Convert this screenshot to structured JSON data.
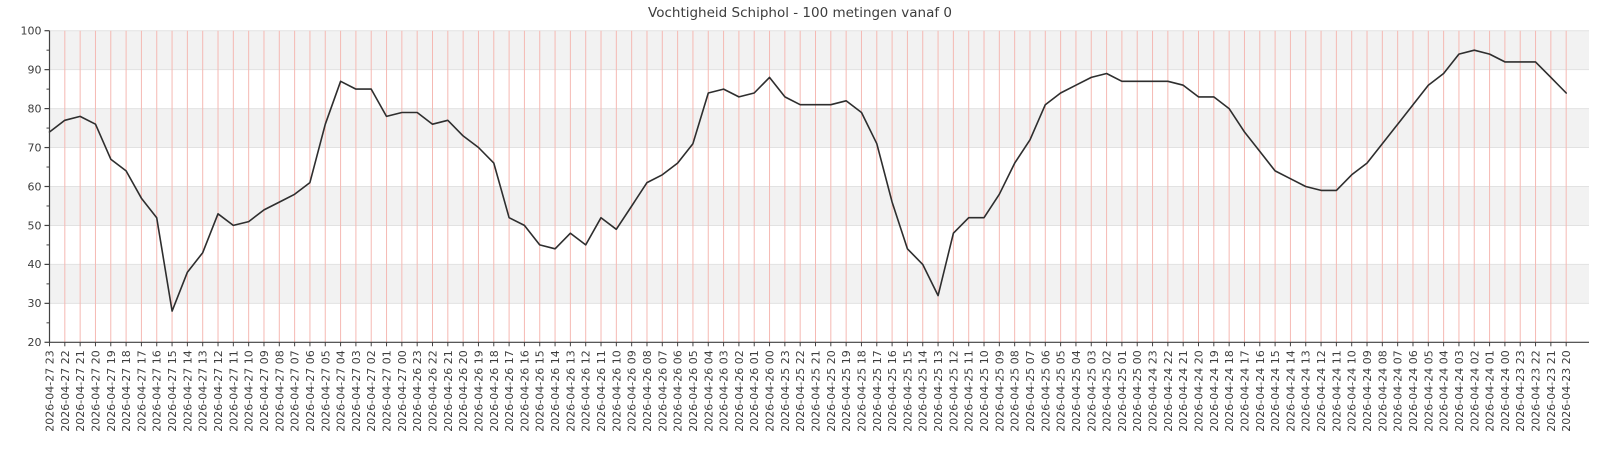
{
  "figure": {
    "title": "Vochtigheid Schiphol - 100 metingen vanaf 0"
  },
  "chart_data": {
    "type": "line",
    "title": "Vochtigheid Schiphol - 100 metingen vanaf 0",
    "xlabel": "",
    "ylabel": "",
    "ylim": [
      20,
      100
    ],
    "yticks": [
      20,
      30,
      40,
      50,
      60,
      70,
      80,
      90,
      100
    ],
    "grid": {
      "x_gridlines": true,
      "y_bands": true,
      "legend": "none"
    },
    "colors": {
      "line": "#2e2e2e",
      "x_gridline": "#f5b9b3",
      "band_gray": "#f2f2f2",
      "band_white": "#ffffff",
      "y_gridline": "#e2e2e2",
      "spine": "#424242",
      "tick_label": "#3d3d3d",
      "title": "#3d3d3d",
      "background": "#ffffff"
    },
    "categories": [
      "2026-04-27 23",
      "2026-04-27 22",
      "2026-04-27 21",
      "2026-04-27 20",
      "2026-04-27 19",
      "2026-04-27 18",
      "2026-04-27 17",
      "2026-04-27 16",
      "2026-04-27 15",
      "2026-04-27 14",
      "2026-04-27 13",
      "2026-04-27 12",
      "2026-04-27 11",
      "2026-04-27 10",
      "2026-04-27 09",
      "2026-04-27 08",
      "2026-04-27 07",
      "2026-04-27 06",
      "2026-04-27 05",
      "2026-04-27 04",
      "2026-04-27 03",
      "2026-04-27 02",
      "2026-04-27 01",
      "2026-04-27 00",
      "2026-04-26 23",
      "2026-04-26 22",
      "2026-04-26 21",
      "2026-04-26 20",
      "2026-04-26 19",
      "2026-04-26 18",
      "2026-04-26 17",
      "2026-04-26 16",
      "2026-04-26 15",
      "2026-04-26 14",
      "2026-04-26 13",
      "2026-04-26 12",
      "2026-04-26 11",
      "2026-04-26 10",
      "2026-04-26 09",
      "2026-04-26 08",
      "2026-04-26 07",
      "2026-04-26 06",
      "2026-04-26 05",
      "2026-04-26 04",
      "2026-04-26 03",
      "2026-04-26 02",
      "2026-04-26 01",
      "2026-04-26 00",
      "2026-04-25 23",
      "2026-04-25 22",
      "2026-04-25 21",
      "2026-04-25 20",
      "2026-04-25 19",
      "2026-04-25 18",
      "2026-04-25 17",
      "2026-04-25 16",
      "2026-04-25 15",
      "2026-04-25 14",
      "2026-04-25 13",
      "2026-04-25 12",
      "2026-04-25 11",
      "2026-04-25 10",
      "2026-04-25 09",
      "2026-04-25 08",
      "2026-04-25 07",
      "2026-04-25 06",
      "2026-04-25 05",
      "2026-04-25 04",
      "2026-04-25 03",
      "2026-04-25 02",
      "2026-04-25 01",
      "2026-04-25 00",
      "2026-04-24 23",
      "2026-04-24 22",
      "2026-04-24 21",
      "2026-04-24 20",
      "2026-04-24 19",
      "2026-04-24 18",
      "2026-04-24 17",
      "2026-04-24 16",
      "2026-04-24 15",
      "2026-04-24 14",
      "2026-04-24 13",
      "2026-04-24 12",
      "2026-04-24 11",
      "2026-04-24 10",
      "2026-04-24 09",
      "2026-04-24 08",
      "2026-04-24 07",
      "2026-04-24 06",
      "2026-04-24 05",
      "2026-04-24 04",
      "2026-04-24 03",
      "2026-04-24 02",
      "2026-04-24 01",
      "2026-04-24 00",
      "2026-04-23 23",
      "2026-04-23 22",
      "2026-04-23 21",
      "2026-04-23 20"
    ],
    "values": [
      74,
      77,
      78,
      76,
      67,
      64,
      57,
      52,
      28,
      38,
      43,
      53,
      50,
      51,
      54,
      56,
      58,
      61,
      76,
      87,
      85,
      85,
      78,
      79,
      79,
      76,
      77,
      73,
      70,
      66,
      52,
      50,
      45,
      44,
      48,
      45,
      52,
      49,
      55,
      61,
      63,
      66,
      71,
      84,
      85,
      83,
      84,
      88,
      83,
      81,
      81,
      81,
      82,
      79,
      71,
      56,
      44,
      40,
      32,
      48,
      52,
      52,
      58,
      66,
      72,
      81,
      84,
      86,
      88,
      89,
      87,
      87,
      87,
      87,
      86,
      83,
      83,
      80,
      74,
      69,
      64,
      62,
      60,
      59,
      59,
      63,
      66,
      71,
      76,
      81,
      86,
      89,
      94,
      95,
      94,
      92,
      92,
      92,
      88,
      84
    ]
  }
}
